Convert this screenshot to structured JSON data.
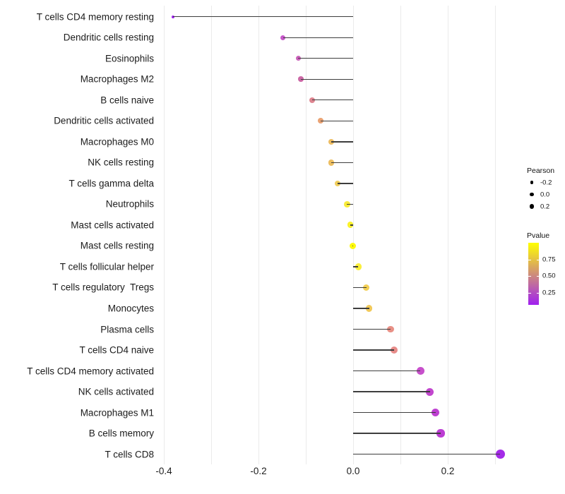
{
  "chart_data": {
    "type": "scatter",
    "subtype": "lollipop",
    "orientation": "horizontal",
    "title": "",
    "xlabel": "",
    "ylabel": "",
    "xlim": [
      -0.45,
      0.35
    ],
    "grid": true,
    "gridline_values": [
      -0.4,
      -0.3,
      -0.2,
      -0.1,
      0.0,
      0.1,
      0.2,
      0.3
    ],
    "x_ticks": [
      {
        "value": -0.4,
        "label": "-0.4"
      },
      {
        "value": -0.2,
        "label": "-0.2"
      },
      {
        "value": 0.0,
        "label": "0.0"
      },
      {
        "value": 0.2,
        "label": "0.2"
      }
    ],
    "points": [
      {
        "label": "T cells CD4 memory resting",
        "pearson": -0.38,
        "color": "#A020F0"
      },
      {
        "label": "Dendritic cells resting",
        "pearson": -0.148,
        "color": "#C657C9"
      },
      {
        "label": "Eosinophils",
        "pearson": -0.116,
        "color": "#CB61BB"
      },
      {
        "label": "Macrophages M2",
        "pearson": -0.11,
        "color": "#CC68A6"
      },
      {
        "label": "B cells naive",
        "pearson": -0.086,
        "color": "#DE8590"
      },
      {
        "label": "Dendritic cells activated",
        "pearson": -0.069,
        "color": "#E9A273"
      },
      {
        "label": "Macrophages M0",
        "pearson": -0.046,
        "color": "#EDBD62"
      },
      {
        "label": "NK cells resting",
        "pearson": -0.046,
        "color": "#EDBE60"
      },
      {
        "label": "T cells gamma delta",
        "pearson": -0.033,
        "color": "#F0CE5C"
      },
      {
        "label": "Neutrophils",
        "pearson": -0.013,
        "color": "#F8EB38"
      },
      {
        "label": "Mast cells activated",
        "pearson": -0.006,
        "color": "#FBF22B"
      },
      {
        "label": "Mast cells resting",
        "pearson": -0.001,
        "color": "#FEF90D"
      },
      {
        "label": "T cells follicular helper",
        "pearson": 0.011,
        "color": "#FAEF3C"
      },
      {
        "label": "T cells regulatory  Tregs",
        "pearson": 0.028,
        "color": "#F2CF55"
      },
      {
        "label": "Monocytes",
        "pearson": 0.034,
        "color": "#F1C95A"
      },
      {
        "label": "Plasma cells",
        "pearson": 0.079,
        "color": "#E89086"
      },
      {
        "label": "T cells CD4 naive",
        "pearson": 0.087,
        "color": "#E78C89"
      },
      {
        "label": "T cells CD4 memory activated",
        "pearson": 0.142,
        "color": "#C750CB"
      },
      {
        "label": "NK cells activated",
        "pearson": 0.162,
        "color": "#C246CE"
      },
      {
        "label": "Macrophages M1",
        "pearson": 0.174,
        "color": "#BE40D1"
      },
      {
        "label": "B cells memory",
        "pearson": 0.185,
        "color": "#BC3DD3"
      },
      {
        "label": "T cells CD8",
        "pearson": 0.311,
        "color": "#A42BE8"
      }
    ],
    "legends": {
      "pearson": {
        "title": "Pearson",
        "entries": [
          {
            "label": "-0.2",
            "dot_diameter": 4.5
          },
          {
            "label": "0.0",
            "dot_diameter": 5.5
          },
          {
            "label": "0.2",
            "dot_diameter": 6.5
          }
        ]
      },
      "pvalue": {
        "title": "Pvalue",
        "tick_labels": [
          "0.75",
          "0.50",
          "0.25"
        ],
        "gradient_stops_top_to_bottom": [
          "#FFFF00",
          "#E7C73C",
          "#CF8F78",
          "#B858B4",
          "#A020F0"
        ],
        "top_value": 1.0,
        "bottom_value": 0.05
      }
    },
    "colors": {
      "stem": "#3d3d3d",
      "gridline": "#ebebeb",
      "axis_text": "#1c1c1c"
    }
  }
}
